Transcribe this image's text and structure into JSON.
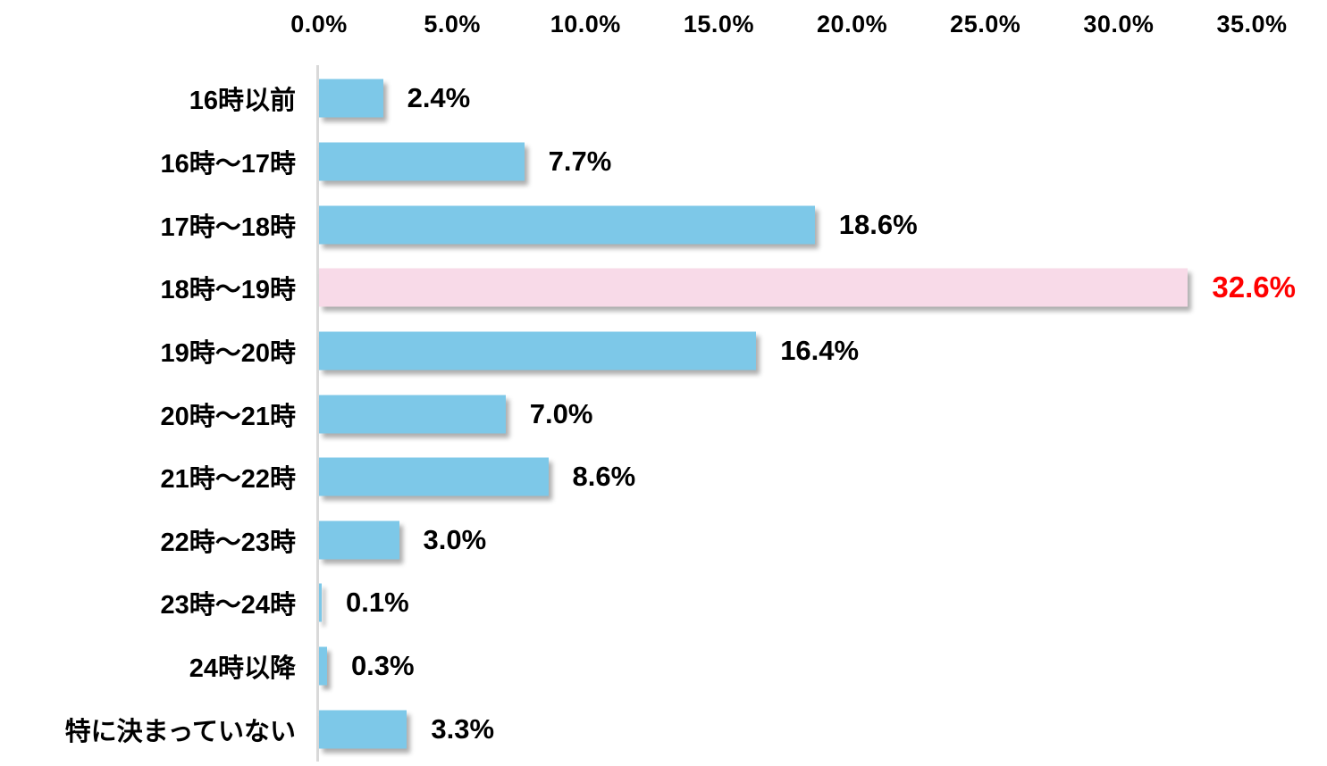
{
  "chart_data": {
    "type": "bar",
    "orientation": "horizontal",
    "title": "",
    "xlabel": "",
    "ylabel": "",
    "grid": false,
    "legend": false,
    "axis_position": "top",
    "xlim": [
      0,
      35
    ],
    "x_ticks": [
      "0.0%",
      "5.0%",
      "10.0%",
      "15.0%",
      "20.0%",
      "25.0%",
      "30.0%",
      "35.0%"
    ],
    "categories": [
      "16時以前",
      "16時〜17時",
      "17時〜18時",
      "18時〜19時",
      "19時〜20時",
      "20時〜21時",
      "21時〜22時",
      "22時〜23時",
      "23時〜24時",
      "24時以降",
      "特に決まっていない"
    ],
    "values": [
      2.4,
      7.7,
      18.6,
      32.6,
      16.4,
      7.0,
      8.6,
      3.0,
      0.1,
      0.3,
      3.3
    ],
    "value_labels": [
      "2.4%",
      "7.7%",
      "18.6%",
      "32.6%",
      "16.4%",
      "7.0%",
      "8.6%",
      "3.0%",
      "0.1%",
      "0.3%",
      "3.3%"
    ],
    "highlight_index": 3,
    "colors": {
      "bar": "#7DC8E8",
      "highlight_bar": "#F8DAE8",
      "value_label": "#000000",
      "highlight_value_label": "#FF0000",
      "axis_line": "#D9D9D9",
      "tick_text": "#000000",
      "category_text": "#000000",
      "background": "#FFFFFF"
    }
  }
}
